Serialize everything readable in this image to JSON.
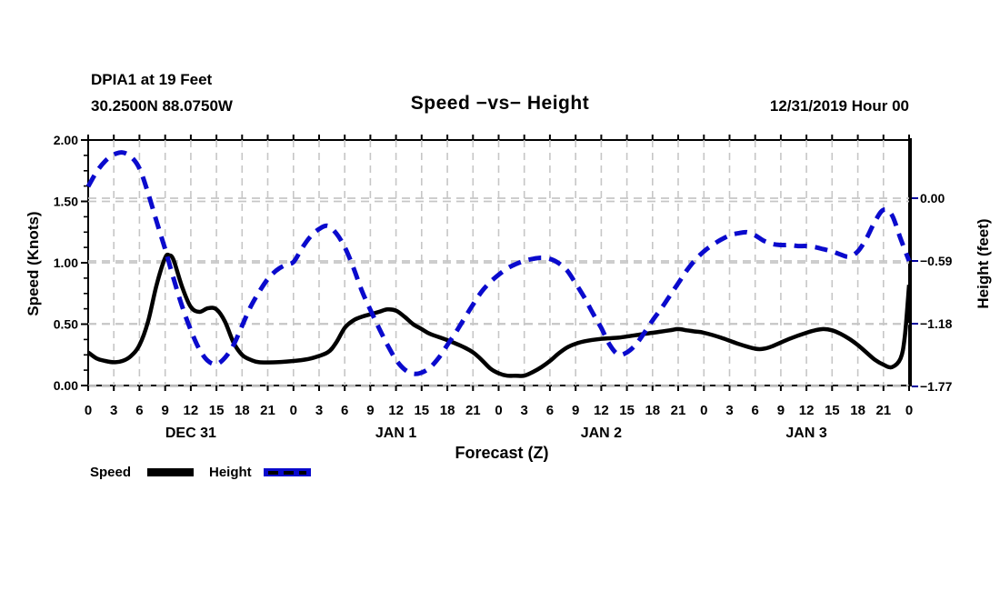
{
  "header": {
    "station_line1": "DPIA1 at 19 Feet",
    "station_line2": "30.2500N 88.0750W",
    "title": "Speed −vs− Height",
    "datetime": "12/31/2019 Hour 00"
  },
  "colors": {
    "speed_line": "#000000",
    "height_line": "#0a0acd",
    "grid": "#c6c6c6",
    "frame": "#000000",
    "right_axis_tick": "#00009c"
  },
  "legend": {
    "items": [
      {
        "label": "Speed",
        "style": "solid",
        "color": "#000000"
      },
      {
        "label": "Height",
        "style": "dashed",
        "color": "#0a0acd"
      }
    ]
  },
  "chart_data": {
    "type": "line",
    "title": "Speed −vs− Height",
    "xlabel": "Forecast (Z)",
    "ylabel_left": "Speed (Knots)",
    "ylabel_right": "Height (feet)",
    "x_range": [
      0,
      96
    ],
    "x_tick_interval_hours": 3,
    "grid": true,
    "legend_position": "bottom-left",
    "x_ticks": [
      {
        "h": 0,
        "label": "0"
      },
      {
        "h": 3,
        "label": "3"
      },
      {
        "h": 6,
        "label": "6"
      },
      {
        "h": 9,
        "label": "9"
      },
      {
        "h": 12,
        "label": "12"
      },
      {
        "h": 15,
        "label": "15"
      },
      {
        "h": 18,
        "label": "18"
      },
      {
        "h": 21,
        "label": "21"
      },
      {
        "h": 24,
        "label": "0"
      },
      {
        "h": 27,
        "label": "3"
      },
      {
        "h": 30,
        "label": "6"
      },
      {
        "h": 33,
        "label": "9"
      },
      {
        "h": 36,
        "label": "12"
      },
      {
        "h": 39,
        "label": "15"
      },
      {
        "h": 42,
        "label": "18"
      },
      {
        "h": 45,
        "label": "21"
      },
      {
        "h": 48,
        "label": "0"
      },
      {
        "h": 51,
        "label": "3"
      },
      {
        "h": 54,
        "label": "6"
      },
      {
        "h": 57,
        "label": "9"
      },
      {
        "h": 60,
        "label": "12"
      },
      {
        "h": 63,
        "label": "15"
      },
      {
        "h": 66,
        "label": "18"
      },
      {
        "h": 69,
        "label": "21"
      },
      {
        "h": 72,
        "label": "0"
      },
      {
        "h": 75,
        "label": "3"
      },
      {
        "h": 78,
        "label": "6"
      },
      {
        "h": 81,
        "label": "9"
      },
      {
        "h": 84,
        "label": "12"
      },
      {
        "h": 87,
        "label": "15"
      },
      {
        "h": 90,
        "label": "18"
      },
      {
        "h": 93,
        "label": "21"
      },
      {
        "h": 96,
        "label": "0"
      }
    ],
    "day_labels": [
      {
        "label": "DEC 31",
        "hour": 12
      },
      {
        "label": "JAN 1",
        "hour": 36
      },
      {
        "label": "JAN 2",
        "hour": 60
      },
      {
        "label": "JAN 3",
        "hour": 84
      }
    ],
    "left_axis": {
      "min": 0,
      "max": 2,
      "ticks": [
        {
          "value": 2.0,
          "label": "2.00"
        },
        {
          "value": 1.5,
          "label": "1.50"
        },
        {
          "value": 1.0,
          "label": "1.00"
        },
        {
          "value": 0.5,
          "label": "0.50"
        },
        {
          "value": 0.0,
          "label": "0.00"
        }
      ],
      "minor_tick_step": 0.125
    },
    "right_axis": {
      "ticks": [
        {
          "value": 0.0,
          "label": "0.00"
        },
        {
          "value": -0.59,
          "label": "−0.59"
        },
        {
          "value": -1.18,
          "label": "−1.18"
        },
        {
          "value": -1.77,
          "label": "−1.77"
        }
      ]
    },
    "series": [
      {
        "name": "Speed",
        "axis": "left",
        "units": "knots",
        "color": "#000000",
        "style": "solid",
        "width": 4.5,
        "points": [
          [
            0,
            0.27
          ],
          [
            1,
            0.22
          ],
          [
            2,
            0.2
          ],
          [
            3,
            0.19
          ],
          [
            4,
            0.2
          ],
          [
            5,
            0.24
          ],
          [
            6,
            0.33
          ],
          [
            7,
            0.52
          ],
          [
            8,
            0.82
          ],
          [
            9,
            1.04
          ],
          [
            9.5,
            1.06
          ],
          [
            10,
            1.02
          ],
          [
            11,
            0.8
          ],
          [
            12,
            0.64
          ],
          [
            13,
            0.6
          ],
          [
            14,
            0.63
          ],
          [
            15,
            0.62
          ],
          [
            16,
            0.52
          ],
          [
            17,
            0.35
          ],
          [
            18,
            0.25
          ],
          [
            19,
            0.21
          ],
          [
            20,
            0.19
          ],
          [
            22,
            0.19
          ],
          [
            24,
            0.2
          ],
          [
            26,
            0.22
          ],
          [
            28,
            0.27
          ],
          [
            29,
            0.35
          ],
          [
            30,
            0.47
          ],
          [
            31,
            0.53
          ],
          [
            32,
            0.56
          ],
          [
            33,
            0.58
          ],
          [
            34,
            0.6
          ],
          [
            35,
            0.62
          ],
          [
            36,
            0.61
          ],
          [
            37,
            0.56
          ],
          [
            38,
            0.5
          ],
          [
            39,
            0.46
          ],
          [
            40,
            0.42
          ],
          [
            42,
            0.37
          ],
          [
            44,
            0.31
          ],
          [
            45,
            0.27
          ],
          [
            46,
            0.21
          ],
          [
            47,
            0.14
          ],
          [
            48,
            0.1
          ],
          [
            49,
            0.08
          ],
          [
            50,
            0.08
          ],
          [
            51,
            0.08
          ],
          [
            52,
            0.11
          ],
          [
            53,
            0.15
          ],
          [
            54,
            0.2
          ],
          [
            55,
            0.26
          ],
          [
            56,
            0.31
          ],
          [
            57,
            0.34
          ],
          [
            58,
            0.36
          ],
          [
            60,
            0.38
          ],
          [
            62,
            0.39
          ],
          [
            64,
            0.41
          ],
          [
            66,
            0.43
          ],
          [
            68,
            0.45
          ],
          [
            69,
            0.46
          ],
          [
            70,
            0.45
          ],
          [
            71,
            0.44
          ],
          [
            72,
            0.43
          ],
          [
            74,
            0.39
          ],
          [
            76,
            0.34
          ],
          [
            78,
            0.3
          ],
          [
            79,
            0.3
          ],
          [
            80,
            0.32
          ],
          [
            82,
            0.38
          ],
          [
            84,
            0.43
          ],
          [
            85,
            0.45
          ],
          [
            86,
            0.46
          ],
          [
            87,
            0.45
          ],
          [
            88,
            0.42
          ],
          [
            89,
            0.38
          ],
          [
            90,
            0.33
          ],
          [
            91,
            0.27
          ],
          [
            92,
            0.21
          ],
          [
            93,
            0.17
          ],
          [
            94,
            0.15
          ],
          [
            95,
            0.22
          ],
          [
            95.5,
            0.4
          ],
          [
            96,
            0.82
          ]
        ]
      },
      {
        "name": "Height",
        "axis": "right",
        "units": "feet",
        "color": "#0a0acd",
        "style": "dashed",
        "width": 5,
        "points": [
          [
            0,
            0.11
          ],
          [
            1,
            0.25
          ],
          [
            2,
            0.35
          ],
          [
            3,
            0.41
          ],
          [
            4,
            0.43
          ],
          [
            5,
            0.39
          ],
          [
            6,
            0.28
          ],
          [
            7,
            0.05
          ],
          [
            8,
            -0.22
          ],
          [
            9,
            -0.48
          ],
          [
            10,
            -0.76
          ],
          [
            11,
            -1.02
          ],
          [
            12,
            -1.24
          ],
          [
            13,
            -1.42
          ],
          [
            14,
            -1.53
          ],
          [
            15,
            -1.56
          ],
          [
            16,
            -1.5
          ],
          [
            17,
            -1.38
          ],
          [
            18,
            -1.2
          ],
          [
            19,
            -1.02
          ],
          [
            20,
            -0.88
          ],
          [
            21,
            -0.76
          ],
          [
            22,
            -0.68
          ],
          [
            23,
            -0.63
          ],
          [
            24,
            -0.6
          ],
          [
            25,
            -0.47
          ],
          [
            26,
            -0.36
          ],
          [
            27,
            -0.29
          ],
          [
            28,
            -0.26
          ],
          [
            29,
            -0.33
          ],
          [
            30,
            -0.46
          ],
          [
            31,
            -0.65
          ],
          [
            32,
            -0.87
          ],
          [
            33,
            -1.05
          ],
          [
            34,
            -1.22
          ],
          [
            35,
            -1.38
          ],
          [
            36,
            -1.52
          ],
          [
            37,
            -1.61
          ],
          [
            38,
            -1.65
          ],
          [
            39,
            -1.64
          ],
          [
            40,
            -1.59
          ],
          [
            41,
            -1.5
          ],
          [
            42,
            -1.38
          ],
          [
            43,
            -1.26
          ],
          [
            44,
            -1.13
          ],
          [
            45,
            -1.0
          ],
          [
            46,
            -0.88
          ],
          [
            47,
            -0.79
          ],
          [
            48,
            -0.72
          ],
          [
            49,
            -0.66
          ],
          [
            50,
            -0.62
          ],
          [
            51,
            -0.59
          ],
          [
            52,
            -0.57
          ],
          [
            53,
            -0.56
          ],
          [
            54,
            -0.57
          ],
          [
            55,
            -0.61
          ],
          [
            56,
            -0.68
          ],
          [
            57,
            -0.8
          ],
          [
            58,
            -0.93
          ],
          [
            59,
            -1.08
          ],
          [
            60,
            -1.22
          ],
          [
            61,
            -1.38
          ],
          [
            62,
            -1.47
          ],
          [
            63,
            -1.45
          ],
          [
            64,
            -1.38
          ],
          [
            65,
            -1.27
          ],
          [
            66,
            -1.15
          ],
          [
            67,
            -1.04
          ],
          [
            68,
            -0.92
          ],
          [
            69,
            -0.8
          ],
          [
            70,
            -0.68
          ],
          [
            71,
            -0.58
          ],
          [
            72,
            -0.5
          ],
          [
            73,
            -0.44
          ],
          [
            74,
            -0.39
          ],
          [
            75,
            -0.35
          ],
          [
            76,
            -0.33
          ],
          [
            77,
            -0.32
          ],
          [
            78,
            -0.35
          ],
          [
            79,
            -0.4
          ],
          [
            80,
            -0.43
          ],
          [
            81,
            -0.44
          ],
          [
            82,
            -0.44
          ],
          [
            83,
            -0.45
          ],
          [
            84,
            -0.45
          ],
          [
            85,
            -0.46
          ],
          [
            86,
            -0.48
          ],
          [
            87,
            -0.5
          ],
          [
            88,
            -0.53
          ],
          [
            89,
            -0.55
          ],
          [
            90,
            -0.5
          ],
          [
            91,
            -0.38
          ],
          [
            92,
            -0.22
          ],
          [
            93,
            -0.11
          ],
          [
            94,
            -0.16
          ],
          [
            95,
            -0.38
          ],
          [
            96,
            -0.59
          ]
        ]
      }
    ]
  }
}
